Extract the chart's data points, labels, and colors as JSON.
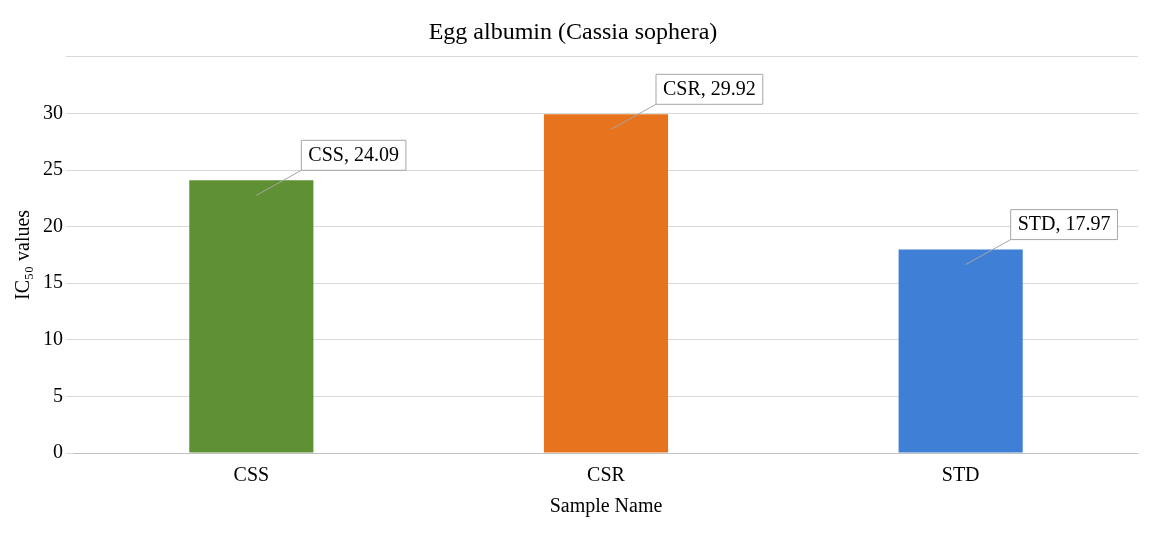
{
  "chart_data": {
    "type": "bar",
    "title": "Egg albumin (Cassia sophera)",
    "xlabel": "Sample Name",
    "ylabel": "IC₅₀ values",
    "categories": [
      "CSS",
      "CSR",
      "STD"
    ],
    "values": [
      24.09,
      29.92,
      17.97
    ],
    "colors": [
      "#5f9134",
      "#e8731f",
      "#3f7fd6"
    ],
    "value_labels": [
      "CSS, 24.09",
      "CSR, 29.92",
      "STD, 17.97"
    ],
    "ylim": [
      0,
      35
    ],
    "yticks": [
      0,
      5,
      10,
      15,
      20,
      25,
      30,
      {
        "value": 35,
        "label": null
      }
    ],
    "grid": "y",
    "legend": false
  }
}
